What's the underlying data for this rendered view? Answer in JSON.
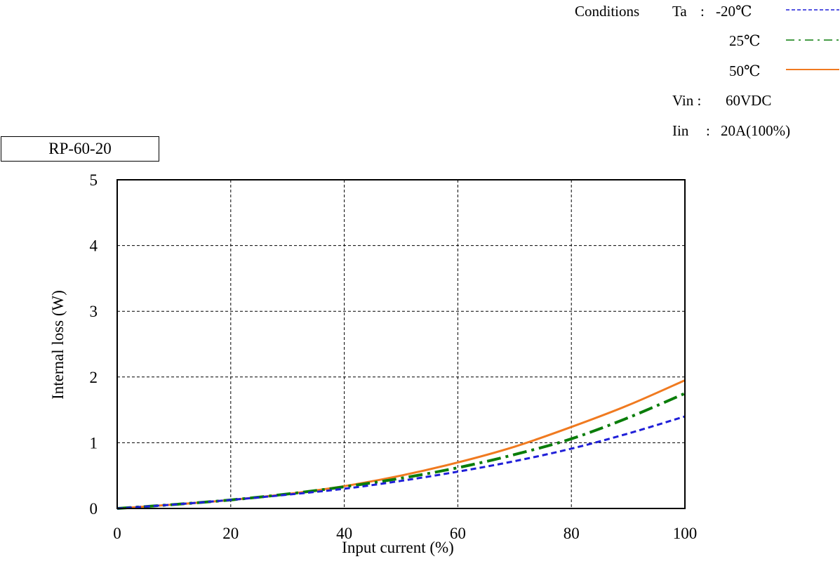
{
  "model": "RP-60-20",
  "conditions": {
    "heading": "Conditions",
    "ta_label": "Ta",
    "ta_sep": ":",
    "vin_label": "Vin :",
    "vin_value": "60VDC",
    "iin_label": "Iin",
    "iin_sep": ":",
    "iin_value": "20A(100%)"
  },
  "chart_data": {
    "type": "line",
    "xlabel": "Input current (%)",
    "ylabel": "Internal loss (W)",
    "xlim": [
      0,
      100
    ],
    "ylim": [
      0,
      5
    ],
    "xticks": [
      "0",
      "20",
      "40",
      "60",
      "80",
      "100"
    ],
    "yticks": [
      "0",
      "1",
      "2",
      "3",
      "4",
      "5"
    ],
    "grid": true,
    "legend_placement": "top-right",
    "x": [
      0,
      10,
      20,
      30,
      40,
      50,
      60,
      70,
      80,
      90,
      100
    ],
    "series": [
      {
        "name": "-20℃",
        "color": "#1f1fd8",
        "dash": "dashed",
        "values": [
          0,
          0.06,
          0.13,
          0.21,
          0.3,
          0.42,
          0.56,
          0.72,
          0.91,
          1.14,
          1.4
        ]
      },
      {
        "name": "25℃",
        "color": "#0a7d0a",
        "dash": "dash-dot",
        "values": [
          0,
          0.06,
          0.13,
          0.22,
          0.33,
          0.46,
          0.62,
          0.82,
          1.06,
          1.38,
          1.75
        ]
      },
      {
        "name": "50℃",
        "color": "#f07a20",
        "dash": "solid",
        "values": [
          0,
          0.06,
          0.13,
          0.22,
          0.34,
          0.5,
          0.7,
          0.94,
          1.24,
          1.57,
          1.95
        ]
      }
    ]
  }
}
